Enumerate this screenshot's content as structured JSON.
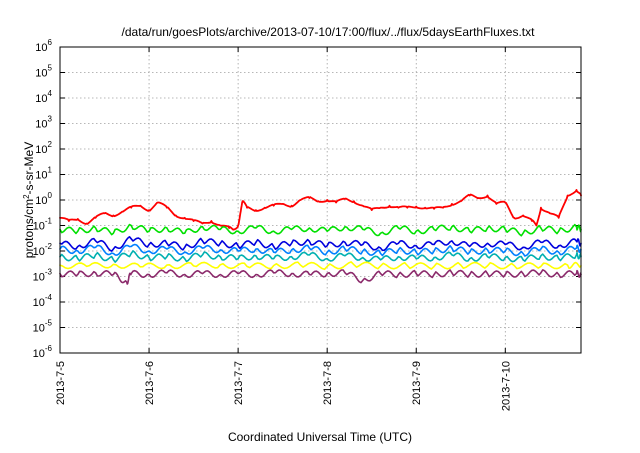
{
  "chart_data": {
    "type": "line",
    "title": "/data/run/goesPlots/archive/2013-07-10/17:00/flux/../flux/5daysEarthFluxes.txt",
    "xlabel": "Coordinated Universal Time (UTC)",
    "ylabel_parts": [
      "protons/cm",
      "2",
      "-s-sr-MeV"
    ],
    "y_scale": "log",
    "ylim": [
      1e-06,
      1000000.0
    ],
    "xlim_days": [
      0,
      5.85
    ],
    "grid": true,
    "legend": "none",
    "y_ticks": [
      {
        "base": "10",
        "exp": "-6",
        "value": 1e-06
      },
      {
        "base": "10",
        "exp": "-5",
        "value": 1e-05
      },
      {
        "base": "10",
        "exp": "-4",
        "value": 0.0001
      },
      {
        "base": "10",
        "exp": "-3",
        "value": 0.001
      },
      {
        "base": "10",
        "exp": "-2",
        "value": 0.01
      },
      {
        "base": "10",
        "exp": "-1",
        "value": 0.1
      },
      {
        "base": "10",
        "exp": "0",
        "value": 1.0
      },
      {
        "base": "10",
        "exp": "1",
        "value": 10.0
      },
      {
        "base": "10",
        "exp": "2",
        "value": 100.0
      },
      {
        "base": "10",
        "exp": "3",
        "value": 1000.0
      },
      {
        "base": "10",
        "exp": "4",
        "value": 10000.0
      },
      {
        "base": "10",
        "exp": "5",
        "value": 100000.0
      },
      {
        "base": "10",
        "exp": "6",
        "value": 1000000.0
      }
    ],
    "x_ticks": [
      {
        "label": "2013-7-5",
        "day": 0
      },
      {
        "label": "2013-7-6",
        "day": 1
      },
      {
        "label": "2013-7-7",
        "day": 2
      },
      {
        "label": "2013-7-8",
        "day": 3
      },
      {
        "label": "2013-7-9",
        "day": 4
      },
      {
        "label": "2013-7-10",
        "day": 5
      }
    ],
    "x_unit": "days since 2013-7-5 00:00 UTC",
    "series": [
      {
        "color": "#ff0000",
        "x": [
          0,
          0.1,
          0.2,
          0.3,
          0.4,
          0.5,
          0.6,
          0.7,
          0.8,
          0.9,
          1.0,
          1.1,
          1.2,
          1.3,
          1.4,
          1.5,
          1.6,
          1.7,
          1.8,
          1.9,
          1.95,
          2.0,
          2.05,
          2.1,
          2.2,
          2.3,
          2.4,
          2.5,
          2.6,
          2.7,
          2.8,
          2.9,
          3.0,
          3.1,
          3.2,
          3.3,
          3.4,
          3.5,
          3.6,
          3.7,
          3.8,
          3.9,
          4.0,
          4.1,
          4.2,
          4.3,
          4.4,
          4.5,
          4.6,
          4.7,
          4.8,
          4.9,
          5.0,
          5.1,
          5.2,
          5.3,
          5.35,
          5.4,
          5.5,
          5.6,
          5.7,
          5.8,
          5.85
        ],
        "values": [
          0.2,
          0.15,
          0.18,
          0.12,
          0.2,
          0.3,
          0.25,
          0.35,
          0.5,
          0.6,
          0.4,
          0.8,
          0.5,
          0.25,
          0.2,
          0.15,
          0.12,
          0.15,
          0.1,
          0.08,
          0.07,
          0.1,
          0.9,
          0.5,
          0.4,
          0.5,
          0.6,
          0.7,
          0.6,
          1.0,
          1.2,
          0.9,
          1.0,
          0.8,
          1.1,
          0.9,
          0.6,
          0.4,
          0.5,
          0.6,
          0.5,
          0.5,
          0.55,
          0.5,
          0.45,
          0.5,
          0.7,
          0.9,
          1.5,
          1.2,
          1.5,
          0.7,
          0.8,
          0.2,
          0.25,
          0.15,
          0.1,
          0.5,
          0.3,
          0.2,
          1.5,
          2.5,
          1.5
        ]
      },
      {
        "color": "#00e000",
        "x": [
          0,
          0.2,
          0.4,
          0.6,
          0.8,
          1.0,
          1.2,
          1.4,
          1.6,
          1.8,
          2.0,
          2.2,
          2.4,
          2.6,
          2.8,
          3.0,
          3.2,
          3.4,
          3.6,
          3.8,
          4.0,
          4.2,
          4.4,
          4.6,
          4.8,
          5.0,
          5.2,
          5.4,
          5.6,
          5.8,
          5.85
        ],
        "values": [
          0.07,
          0.06,
          0.08,
          0.05,
          0.1,
          0.06,
          0.08,
          0.05,
          0.09,
          0.07,
          0.06,
          0.08,
          0.06,
          0.07,
          0.08,
          0.06,
          0.09,
          0.07,
          0.05,
          0.08,
          0.06,
          0.07,
          0.09,
          0.06,
          0.08,
          0.07,
          0.05,
          0.08,
          0.06,
          0.09,
          0.07
        ]
      },
      {
        "color": "#0000dd",
        "x": [
          0,
          0.2,
          0.4,
          0.6,
          0.8,
          1.0,
          1.2,
          1.4,
          1.6,
          1.8,
          2.0,
          2.2,
          2.4,
          2.6,
          2.8,
          3.0,
          3.2,
          3.4,
          3.6,
          3.8,
          4.0,
          4.2,
          4.4,
          4.6,
          4.8,
          5.0,
          5.2,
          5.4,
          5.6,
          5.8,
          5.85
        ],
        "values": [
          0.02,
          0.015,
          0.025,
          0.012,
          0.03,
          0.018,
          0.02,
          0.014,
          0.025,
          0.02,
          0.016,
          0.022,
          0.015,
          0.02,
          0.024,
          0.016,
          0.022,
          0.018,
          0.013,
          0.02,
          0.016,
          0.018,
          0.025,
          0.015,
          0.02,
          0.018,
          0.014,
          0.022,
          0.016,
          0.024,
          0.02
        ]
      },
      {
        "color": "#0080ff",
        "x": [
          0,
          0.2,
          0.4,
          0.6,
          0.8,
          1.0,
          1.2,
          1.4,
          1.6,
          1.8,
          2.0,
          2.2,
          2.4,
          2.6,
          2.8,
          3.0,
          3.2,
          3.4,
          3.6,
          3.8,
          4.0,
          4.2,
          4.4,
          4.6,
          4.8,
          5.0,
          5.2,
          5.4,
          5.6,
          5.8,
          5.85
        ],
        "values": [
          0.012,
          0.01,
          0.014,
          0.008,
          0.015,
          0.01,
          0.012,
          0.009,
          0.013,
          0.011,
          0.01,
          0.012,
          0.009,
          0.011,
          0.013,
          0.009,
          0.012,
          0.01,
          0.008,
          0.011,
          0.009,
          0.01,
          0.013,
          0.009,
          0.011,
          0.01,
          0.008,
          0.012,
          0.009,
          0.013,
          0.011
        ]
      },
      {
        "color": "#00b0b0",
        "x": [
          0,
          0.2,
          0.4,
          0.6,
          0.8,
          1.0,
          1.2,
          1.4,
          1.6,
          1.8,
          2.0,
          2.2,
          2.4,
          2.6,
          2.8,
          3.0,
          3.2,
          3.4,
          3.6,
          3.8,
          4.0,
          4.2,
          4.4,
          4.6,
          4.8,
          5.0,
          5.2,
          5.4,
          5.6,
          5.8,
          5.85
        ],
        "values": [
          0.006,
          0.005,
          0.007,
          0.0045,
          0.008,
          0.0055,
          0.006,
          0.005,
          0.007,
          0.006,
          0.005,
          0.0065,
          0.005,
          0.006,
          0.007,
          0.005,
          0.0065,
          0.0055,
          0.0045,
          0.006,
          0.005,
          0.0055,
          0.007,
          0.005,
          0.006,
          0.0055,
          0.0045,
          0.0065,
          0.005,
          0.007,
          0.006
        ]
      },
      {
        "color": "#ffff00",
        "x": [
          0,
          0.3,
          0.6,
          0.9,
          1.2,
          1.5,
          1.8,
          2.1,
          2.4,
          2.7,
          3.0,
          3.3,
          3.6,
          3.9,
          4.2,
          4.5,
          4.8,
          5.1,
          5.4,
          5.7,
          5.85
        ],
        "values": [
          0.0028,
          0.0025,
          0.003,
          0.0024,
          0.0028,
          0.0026,
          0.0029,
          0.0025,
          0.0027,
          0.0028,
          0.0025,
          0.0029,
          0.0026,
          0.0027,
          0.0025,
          0.0028,
          0.0026,
          0.0027,
          0.0025,
          0.0028,
          0.0026
        ]
      },
      {
        "color": "#8b2a6b",
        "x": [
          0,
          0.2,
          0.4,
          0.6,
          0.75,
          0.8,
          1.0,
          1.2,
          1.4,
          1.6,
          1.8,
          2.0,
          2.2,
          2.4,
          2.6,
          2.8,
          3.0,
          3.2,
          3.4,
          3.6,
          3.8,
          4.0,
          4.2,
          4.4,
          4.6,
          4.8,
          5.0,
          5.2,
          5.4,
          5.6,
          5.8,
          5.85
        ],
        "values": [
          0.0013,
          0.0012,
          0.0014,
          0.0012,
          0.0006,
          0.0013,
          0.0012,
          0.0014,
          0.0012,
          0.0013,
          0.0012,
          0.0013,
          0.0012,
          0.0014,
          0.0013,
          0.0012,
          0.0013,
          0.0014,
          0.0007,
          0.0013,
          0.0012,
          0.0013,
          0.0012,
          0.0014,
          0.0012,
          0.0013,
          0.0012,
          0.0013,
          0.0014,
          0.0012,
          0.0013,
          0.0012
        ]
      }
    ]
  }
}
